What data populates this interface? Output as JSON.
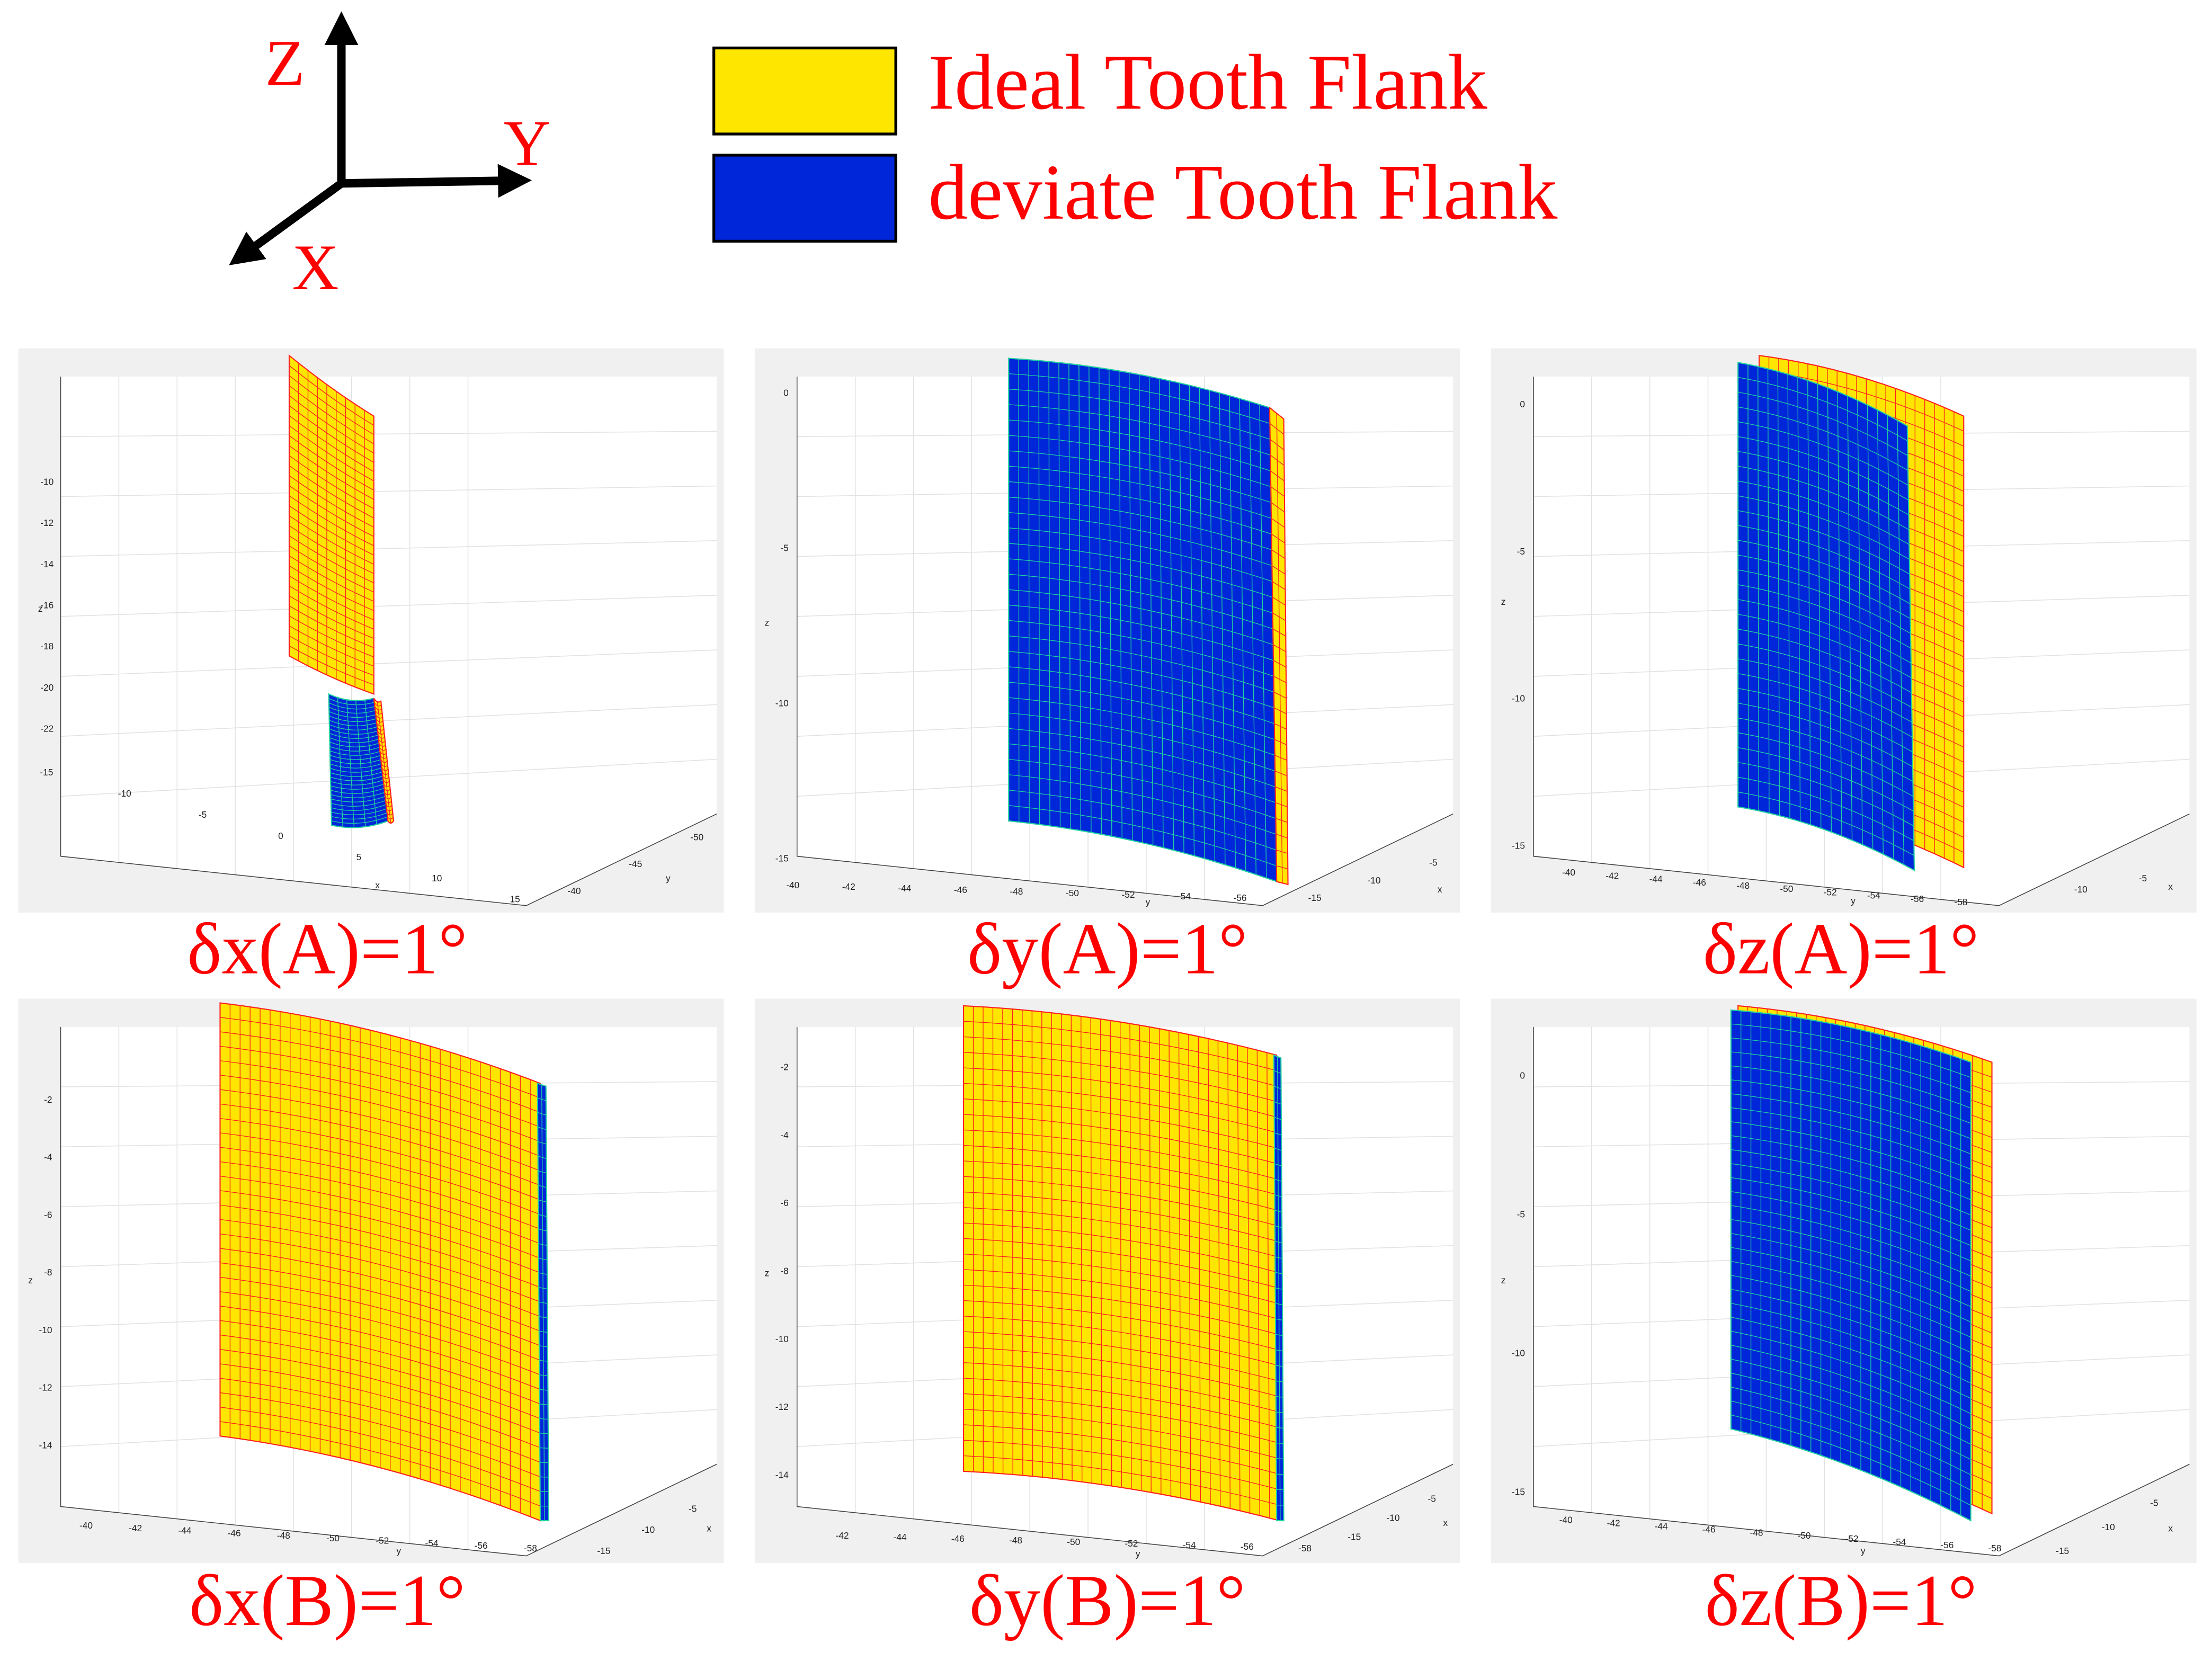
{
  "axes_icon": {
    "z": "Z",
    "y": "Y",
    "x": "X"
  },
  "legend": [
    {
      "label": "Ideal Tooth Flank",
      "color": "#ffe600"
    },
    {
      "label": "deviate Tooth Flank",
      "color": "#0026d9"
    }
  ],
  "panels": [
    {
      "caption": "δx(A)=1°",
      "z_label": "z",
      "x_label": "x",
      "y_label": "y",
      "z_ticks": [
        -10,
        -12,
        -14,
        -16,
        -18,
        -20,
        -22
      ],
      "y_ticks": [
        -40,
        -45,
        -50
      ],
      "x_ticks": [
        -15,
        -10,
        -5,
        0,
        5,
        10,
        15
      ]
    },
    {
      "caption": "δy(A)=1°",
      "z_label": "z",
      "x_label": "x",
      "y_label": "y",
      "z_ticks": [
        0,
        -5,
        -10,
        -15
      ],
      "y_ticks": [
        -40,
        -42,
        -44,
        -46,
        -48,
        -50,
        -52,
        -54,
        -56
      ],
      "x_ticks": [
        -15,
        -10,
        -5
      ]
    },
    {
      "caption": "δz(A)=1°",
      "z_label": "z",
      "x_label": "x",
      "y_label": "y",
      "z_ticks": [
        0,
        -5,
        -10,
        -15
      ],
      "y_ticks": [
        -40,
        -42,
        -44,
        -46,
        -48,
        -50,
        -52,
        -54,
        -56,
        -58
      ],
      "x_ticks": [
        -10,
        -5
      ]
    },
    {
      "caption": "δx(B)=1°",
      "z_label": "z",
      "x_label": "x",
      "y_label": "y",
      "z_ticks": [
        -2,
        -4,
        -6,
        -8,
        -10,
        -12,
        -14
      ],
      "y_ticks": [
        -40,
        -42,
        -44,
        -46,
        -48,
        -50,
        -52,
        -54,
        -56,
        -58
      ],
      "x_ticks": [
        -15,
        -10,
        -5
      ]
    },
    {
      "caption": "δy(B)=1°",
      "z_label": "z",
      "x_label": "x",
      "y_label": "y",
      "z_ticks": [
        -2,
        -4,
        -6,
        -8,
        -10,
        -12,
        -14
      ],
      "y_ticks": [
        -42,
        -44,
        -46,
        -48,
        -50,
        -52,
        -54,
        -56,
        -58
      ],
      "x_ticks": [
        -15,
        -10,
        -5
      ]
    },
    {
      "caption": "δz(B)=1°",
      "z_label": "z",
      "x_label": "x",
      "y_label": "y",
      "z_ticks": [
        0,
        -5,
        -10,
        -15
      ],
      "y_ticks": [
        -40,
        -42,
        -44,
        -46,
        -48,
        -50,
        -52,
        -54,
        -56,
        -58
      ],
      "x_ticks": [
        -15,
        -10,
        -5
      ]
    }
  ]
}
